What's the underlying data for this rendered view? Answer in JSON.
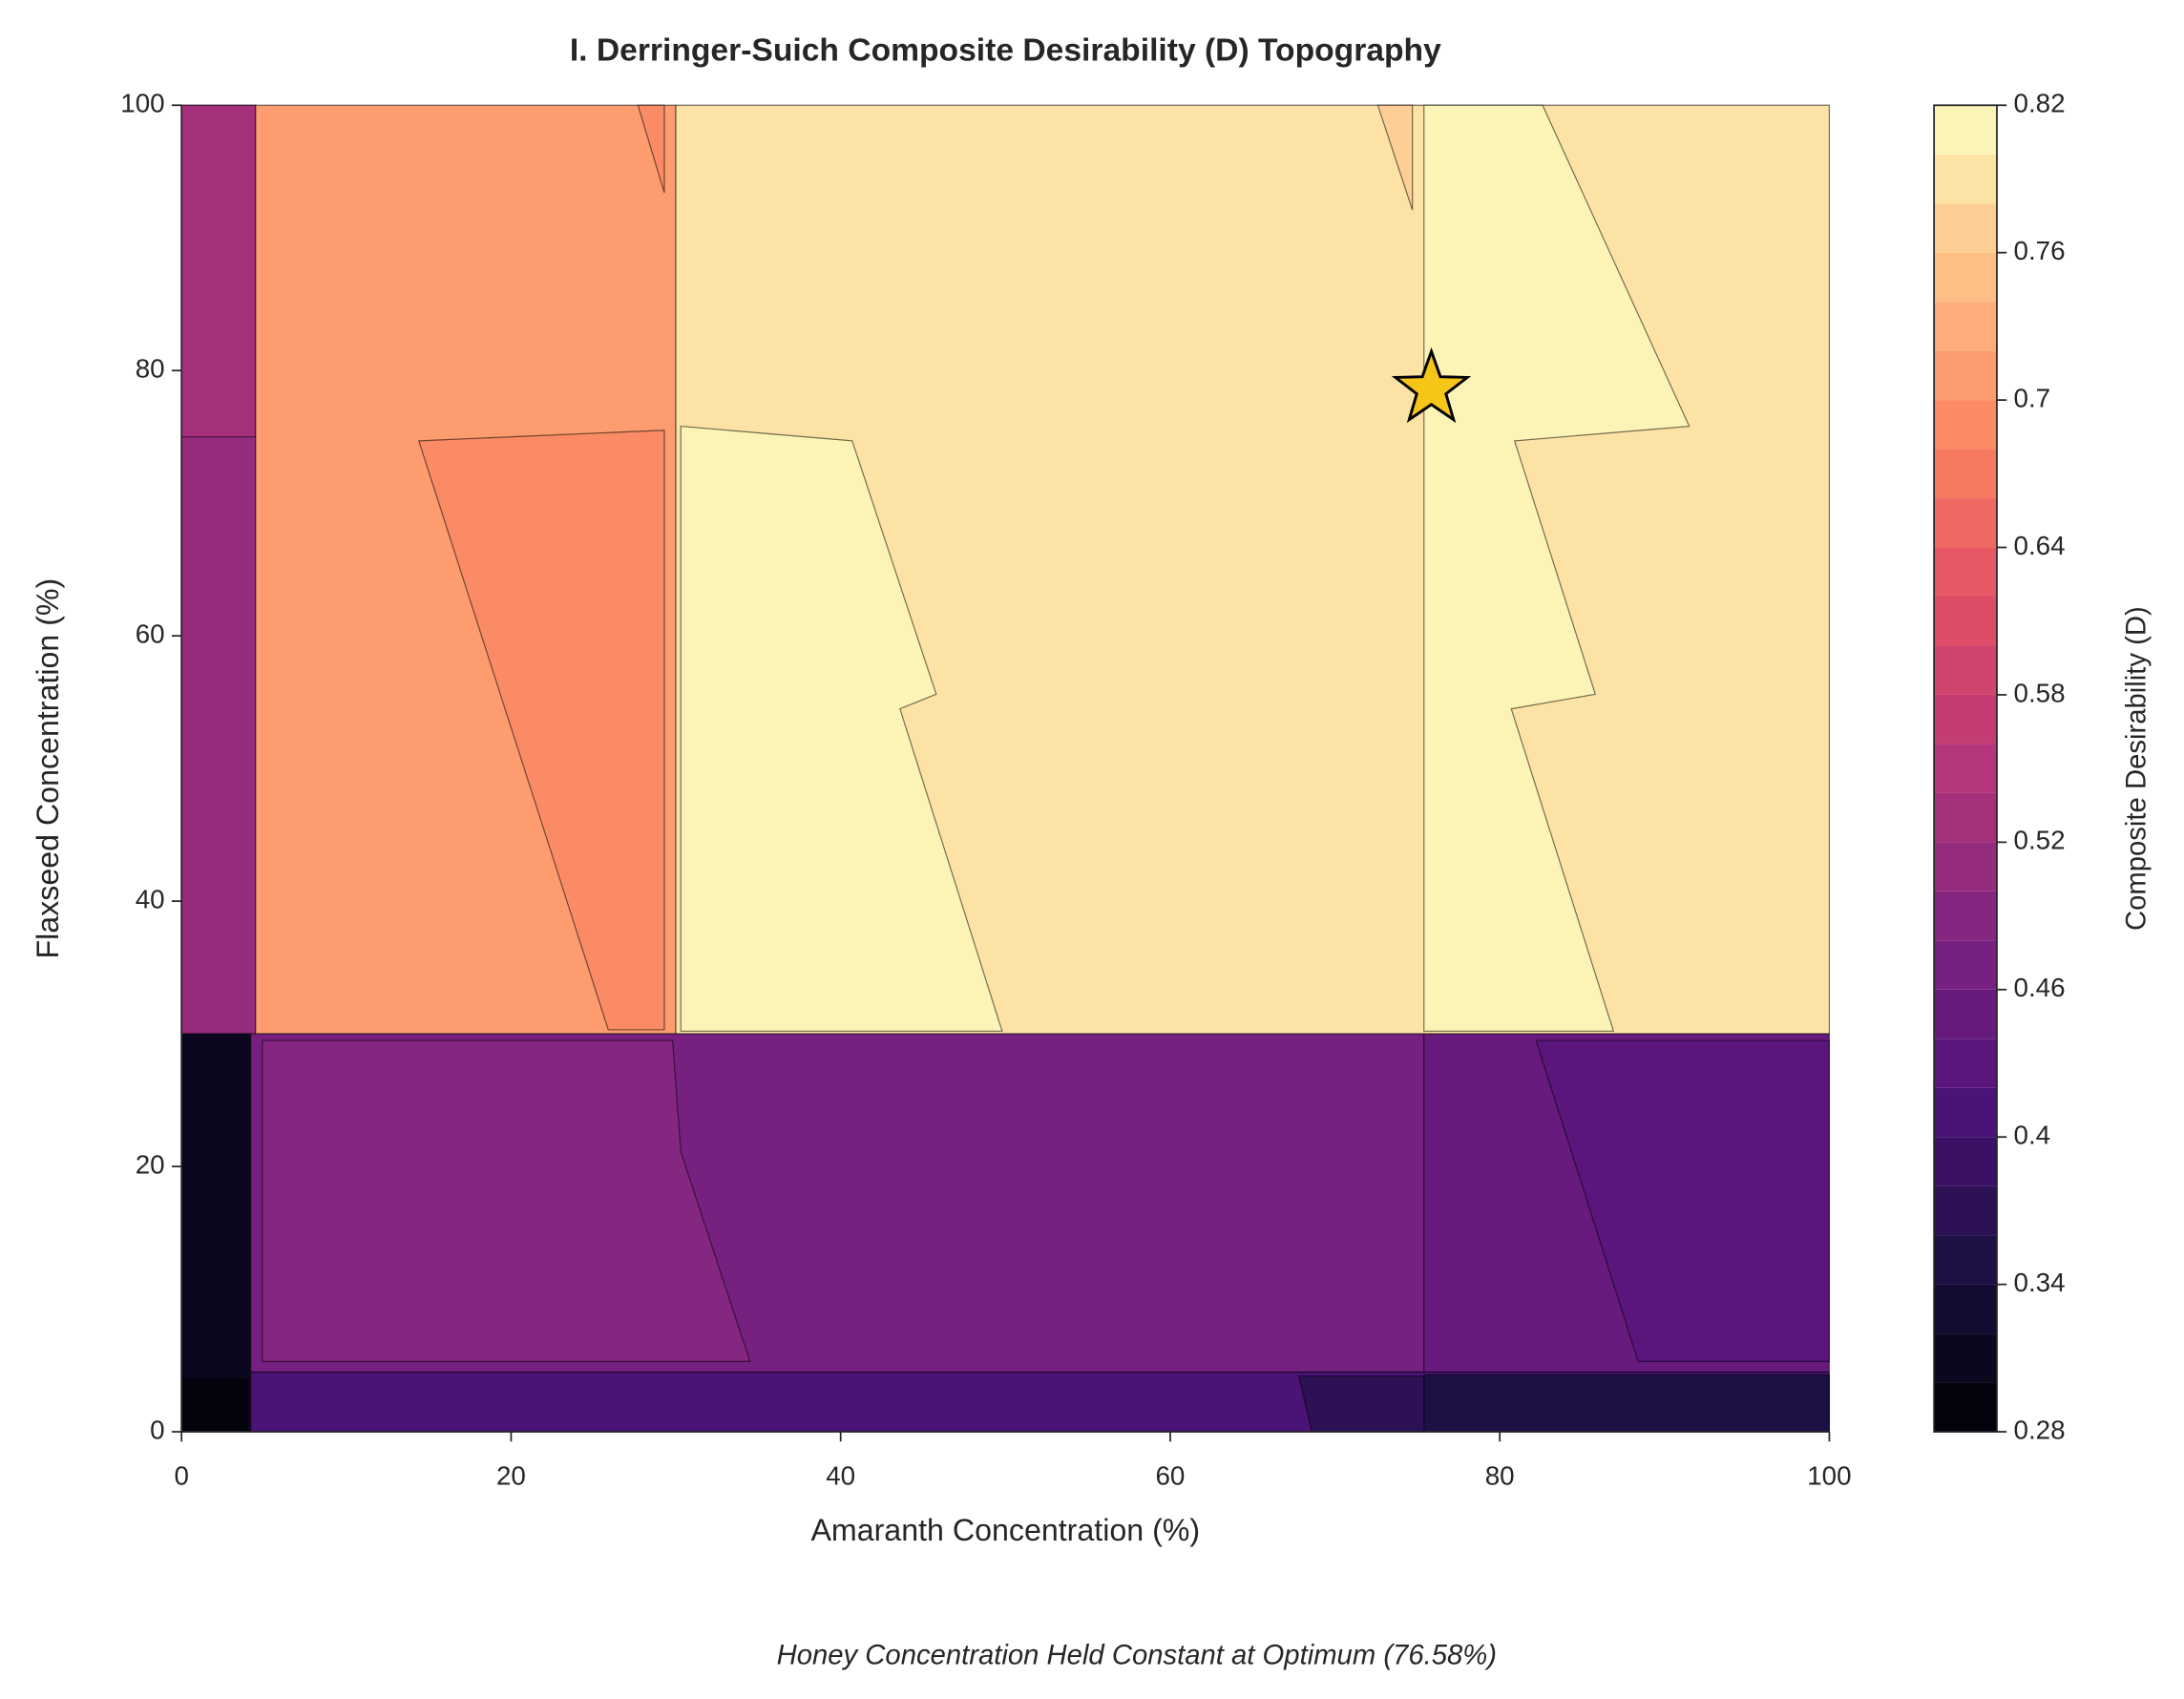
{
  "chart_data": {
    "type": "contour",
    "title": "I. Derringer-Suich Composite Desirability (D) Topography",
    "xlabel": "Amaranth Concentration (%)",
    "ylabel": "Flaxseed Concentration (%)",
    "footnote": "Honey Concentration Held Constant at Optimum (76.58%)",
    "colorbar_label": "Composite Desirability (D)",
    "colormap": "magma",
    "xlim": [
      0,
      100
    ],
    "ylim": [
      0,
      100
    ],
    "xticks": [
      0,
      20,
      40,
      60,
      80,
      100
    ],
    "yticks": [
      0,
      20,
      40,
      60,
      80,
      100
    ],
    "levels": [
      0.28,
      0.3,
      0.32,
      0.34,
      0.36,
      0.38,
      0.4,
      0.42,
      0.44,
      0.46,
      0.48,
      0.5,
      0.52,
      0.54,
      0.56,
      0.58,
      0.6,
      0.62,
      0.64,
      0.66,
      0.68,
      0.7,
      0.72,
      0.74,
      0.76,
      0.78,
      0.8,
      0.82
    ],
    "colorbar_ticks": [
      0.28,
      0.34,
      0.4,
      0.46,
      0.52,
      0.58,
      0.64,
      0.7,
      0.76,
      0.82
    ],
    "regions": [
      {
        "level": 0.51,
        "points": [
          [
            0,
            30
          ],
          [
            4.5,
            30
          ],
          [
            4.5,
            100
          ],
          [
            0,
            100
          ]
        ]
      },
      {
        "level": 0.53,
        "points": [
          [
            0,
            75
          ],
          [
            4.5,
            75
          ],
          [
            4.5,
            100
          ],
          [
            0,
            100
          ]
        ]
      },
      {
        "level": 0.71,
        "points": [
          [
            4.5,
            30
          ],
          [
            30,
            30
          ],
          [
            30,
            100
          ],
          [
            4.5,
            100
          ]
        ]
      },
      {
        "level": 0.69,
        "points": [
          [
            14.4,
            74.7
          ],
          [
            29.3,
            75.5
          ],
          [
            29.3,
            30.3
          ],
          [
            25.9,
            30.3
          ]
        ]
      },
      {
        "level": 0.69,
        "points": [
          [
            27.7,
            100
          ],
          [
            29.3,
            100
          ],
          [
            29.3,
            93.4
          ]
        ]
      },
      {
        "level": 0.79,
        "points": [
          [
            30,
            30
          ],
          [
            100,
            30
          ],
          [
            100,
            100
          ],
          [
            30,
            100
          ]
        ]
      },
      {
        "level": 0.81,
        "points": [
          [
            30.3,
            75.8
          ],
          [
            40.7,
            74.7
          ],
          [
            45.8,
            55.6
          ],
          [
            43.6,
            54.5
          ],
          [
            49.8,
            30.2
          ],
          [
            30.3,
            30.2
          ]
        ]
      },
      {
        "level": 0.81,
        "points": [
          [
            75.4,
            100
          ],
          [
            82.6,
            100
          ],
          [
            91.5,
            75.8
          ],
          [
            80.9,
            74.7
          ],
          [
            85.8,
            55.6
          ],
          [
            80.7,
            54.5
          ],
          [
            86.9,
            30.2
          ],
          [
            75.4,
            30.2
          ]
        ]
      },
      {
        "level": 0.77,
        "points": [
          [
            72.6,
            100
          ],
          [
            74.7,
            100
          ],
          [
            74.7,
            92.1
          ]
        ]
      },
      {
        "level": 0.31,
        "points": [
          [
            0,
            0
          ],
          [
            4.2,
            0
          ],
          [
            4.2,
            30
          ],
          [
            0,
            30
          ]
        ]
      },
      {
        "level": 0.29,
        "points": [
          [
            0,
            0
          ],
          [
            4,
            0
          ],
          [
            4,
            4
          ],
          [
            0,
            4
          ]
        ]
      },
      {
        "level": 0.47,
        "points": [
          [
            4.2,
            4.5
          ],
          [
            75.4,
            4.5
          ],
          [
            75.4,
            30
          ],
          [
            4.2,
            30
          ]
        ]
      },
      {
        "level": 0.45,
        "points": [
          [
            75.4,
            4.5
          ],
          [
            100,
            4.5
          ],
          [
            100,
            30
          ],
          [
            75.4,
            30
          ]
        ]
      },
      {
        "level": 0.49,
        "points": [
          [
            4.9,
            29.5
          ],
          [
            29.8,
            29.5
          ],
          [
            30.3,
            21.1
          ],
          [
            34.5,
            5.3
          ],
          [
            4.9,
            5.3
          ]
        ]
      },
      {
        "level": 0.43,
        "points": [
          [
            82.2,
            29.5
          ],
          [
            100,
            29.5
          ],
          [
            100,
            5.3
          ],
          [
            88.4,
            5.3
          ]
        ]
      },
      {
        "level": 0.41,
        "points": [
          [
            4.2,
            0
          ],
          [
            100,
            0
          ],
          [
            100,
            4.5
          ],
          [
            4.2,
            4.5
          ]
        ]
      },
      {
        "level": 0.37,
        "points": [
          [
            67.8,
            4.2
          ],
          [
            100,
            4.2
          ],
          [
            100,
            0
          ],
          [
            68.6,
            0
          ]
        ]
      },
      {
        "level": 0.35,
        "points": [
          [
            75.4,
            0
          ],
          [
            100,
            0
          ],
          [
            100,
            4.3
          ],
          [
            75.4,
            4.3
          ]
        ]
      }
    ],
    "optimum": {
      "x": 75.85,
      "y": 78.6,
      "color": "#f5c518"
    }
  }
}
